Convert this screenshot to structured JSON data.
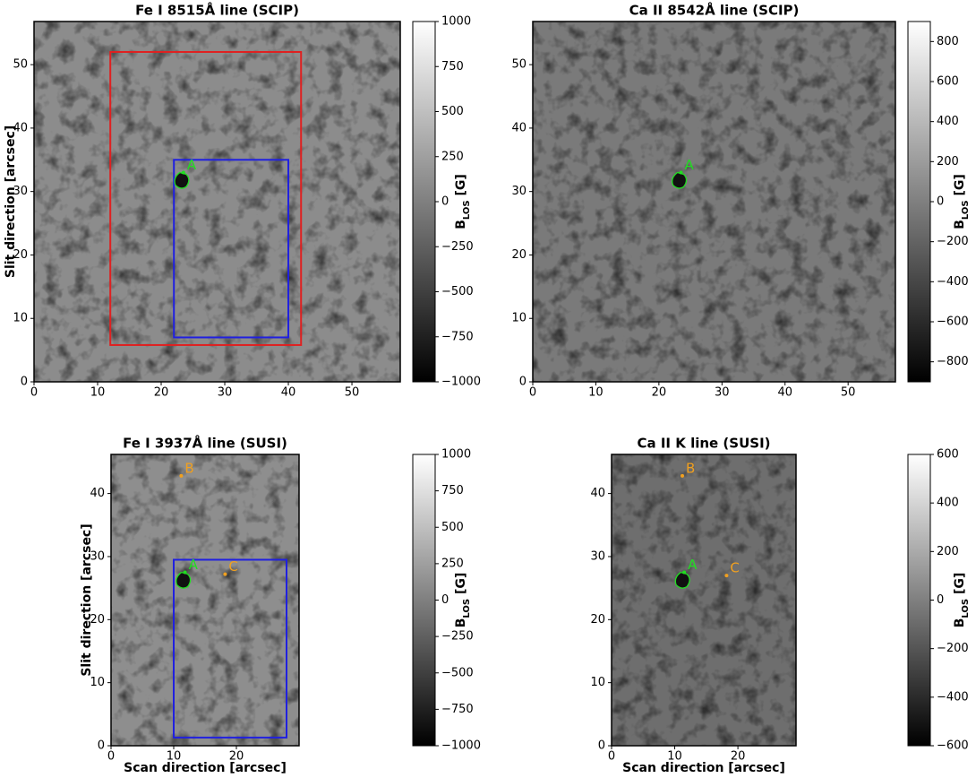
{
  "chart_data": [
    {
      "type": "image",
      "title": "Fe I 8515Å line (SCIP)",
      "ylabel": "Slit direction [arcsec]",
      "xlim": [
        0,
        57.6
      ],
      "ylim": [
        0,
        56.8
      ],
      "xticks": [
        0,
        10,
        20,
        30,
        40,
        50
      ],
      "yticks": [
        0,
        10,
        20,
        30,
        40,
        50
      ],
      "background": "#8c8c8c",
      "colorbar": {
        "label": {
          "base": "B",
          "subscript": "LOS",
          "unit": " [G]"
        },
        "lim": [
          -1000,
          1000
        ],
        "ticks": [
          {
            "value": -1000,
            "label": "−1000"
          },
          {
            "value": -750,
            "label": "−750"
          },
          {
            "value": -500,
            "label": "−500"
          },
          {
            "value": -250,
            "label": "−250"
          },
          0,
          250,
          500,
          750,
          1000
        ]
      },
      "boxes": [
        {
          "color": "#e02020",
          "x": [
            12,
            42
          ],
          "y": [
            5.8,
            52
          ]
        },
        {
          "color": "#2020e0",
          "x": [
            22,
            40
          ],
          "y": [
            7,
            35
          ]
        }
      ],
      "points": [
        {
          "label": "A",
          "x": 23.5,
          "y": 33,
          "color": "#22dd22"
        }
      ]
    },
    {
      "type": "image",
      "title": "Ca II 8542Å line (SCIP)",
      "xlim": [
        0,
        57.5
      ],
      "ylim": [
        0,
        56.8
      ],
      "xticks": [
        0,
        10,
        20,
        30,
        40,
        50
      ],
      "yticks": [
        0,
        10,
        20,
        30,
        40,
        50
      ],
      "background": "#7a7a7a",
      "colorbar": {
        "label": {
          "base": "B",
          "subscript": "LOS",
          "unit": " [G]"
        },
        "lim": [
          -900,
          900
        ],
        "ticks": [
          {
            "value": -800,
            "label": "−800"
          },
          {
            "value": -600,
            "label": "−600"
          },
          {
            "value": -400,
            "label": "−400"
          },
          {
            "value": -200,
            "label": "−200"
          },
          0,
          200,
          400,
          600,
          800
        ]
      },
      "boxes": [],
      "points": [
        {
          "label": "A",
          "x": 23.5,
          "y": 33,
          "color": "#22dd22"
        }
      ]
    },
    {
      "type": "image",
      "title": "Fe I 3937Å line (SUSI)",
      "xlabel": "Scan direction [arcsec]",
      "ylabel": "Slit direction [arcsec]",
      "xlim": [
        0,
        30
      ],
      "ylim": [
        0,
        46.2
      ],
      "xticks": [
        0,
        10,
        20
      ],
      "yticks": [
        0,
        10,
        20,
        30,
        40
      ],
      "background": "#8e8e8e",
      "colorbar": {
        "label": {
          "base": "B",
          "subscript": "LOS",
          "unit": " [G]"
        },
        "lim": [
          -1000,
          1000
        ],
        "ticks": [
          {
            "value": -1000,
            "label": "−1000"
          },
          {
            "value": -750,
            "label": "−750"
          },
          {
            "value": -500,
            "label": "−500"
          },
          {
            "value": -250,
            "label": "−250"
          },
          0,
          250,
          500,
          750,
          1000
        ]
      },
      "boxes": [
        {
          "color": "#2020e0",
          "x": [
            10,
            28
          ],
          "y": [
            1.3,
            29.5
          ]
        }
      ],
      "points": [
        {
          "label": "A",
          "x": 11.8,
          "y": 27.5,
          "color": "#22dd22"
        },
        {
          "label": "B",
          "x": 11.2,
          "y": 42.8,
          "color": "#f0a020"
        },
        {
          "label": "C",
          "x": 18.2,
          "y": 27.2,
          "color": "#f0a020"
        }
      ]
    },
    {
      "type": "image",
      "title": "Ca II K line (SUSI)",
      "xlabel": "Scan direction [arcsec]",
      "xlim": [
        0,
        29.2
      ],
      "ylim": [
        0,
        46.2
      ],
      "xticks": [
        0,
        10,
        20
      ],
      "yticks": [
        0,
        10,
        20,
        30,
        40
      ],
      "background": "#6e6e6e",
      "colorbar": {
        "label": {
          "base": "B",
          "subscript": "LOS",
          "unit": " [G]"
        },
        "lim": [
          -600,
          600
        ],
        "ticks": [
          {
            "value": -600,
            "label": "−600"
          },
          {
            "value": -400,
            "label": "−400"
          },
          {
            "value": -200,
            "label": "−200"
          },
          0,
          200,
          400,
          600
        ]
      },
      "boxes": [],
      "points": [
        {
          "label": "A",
          "x": 11.5,
          "y": 27.5,
          "color": "#22dd22"
        },
        {
          "label": "B",
          "x": 11.2,
          "y": 42.8,
          "color": "#f0a020"
        },
        {
          "label": "C",
          "x": 18.2,
          "y": 27,
          "color": "#f0a020"
        }
      ]
    }
  ]
}
